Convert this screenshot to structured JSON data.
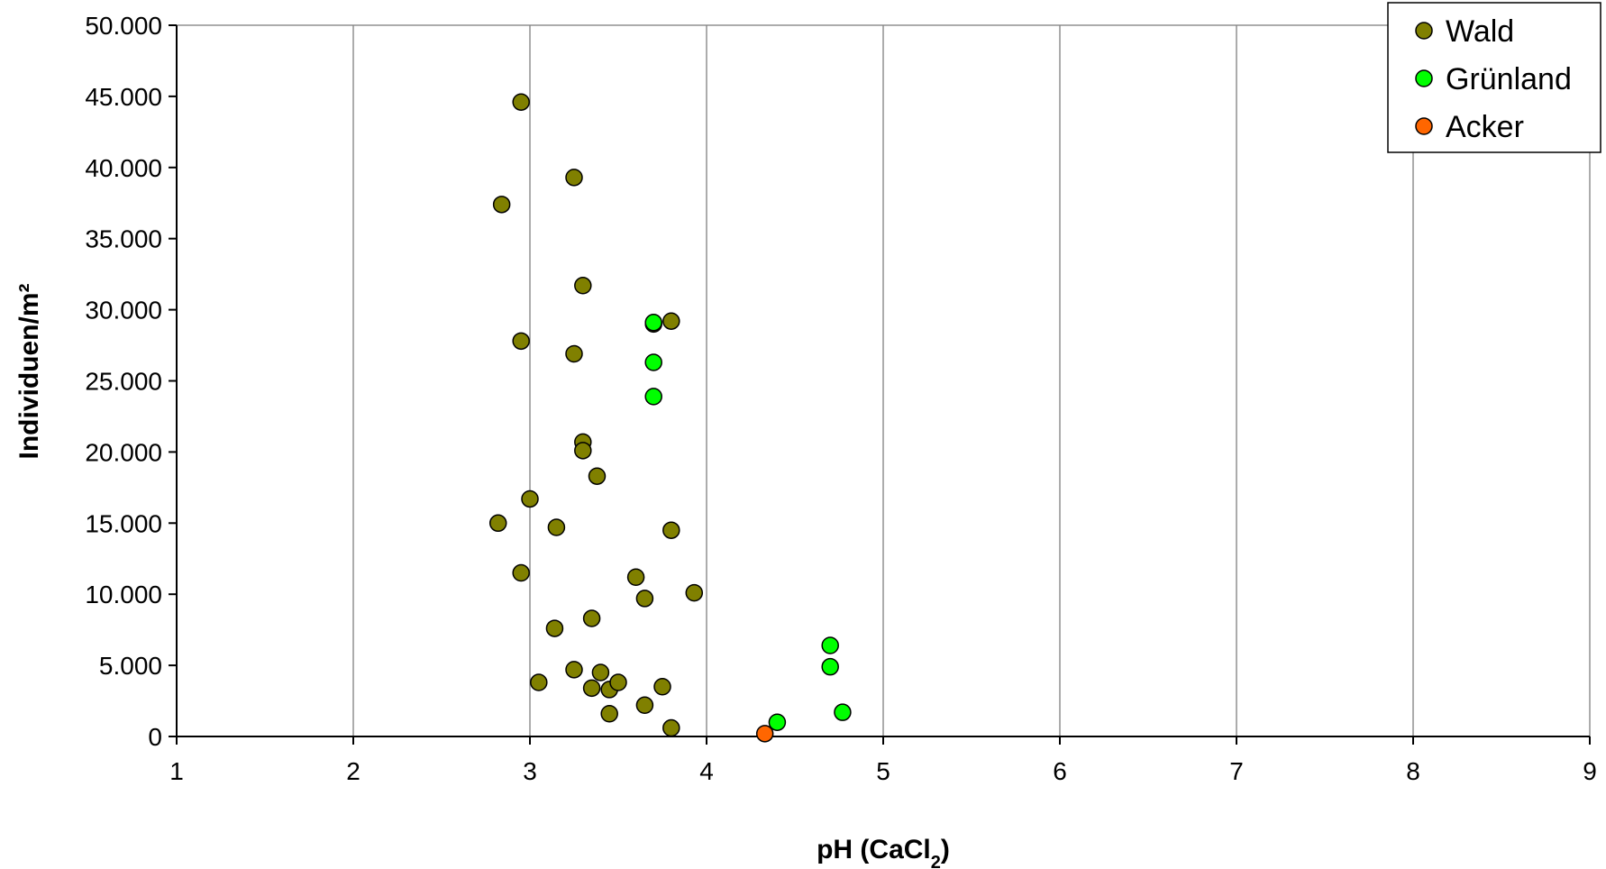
{
  "chart_data": {
    "type": "scatter",
    "xlabel": "pH (CaCl",
    "xlabel_subscript": "2",
    "xlabel_suffix": ")",
    "ylabel": "Individuen/m²",
    "xlim": [
      1,
      9
    ],
    "ylim": [
      0,
      50000
    ],
    "x_ticks": [
      1,
      2,
      3,
      4,
      5,
      6,
      7,
      8,
      9
    ],
    "y_ticks": [
      0,
      5000,
      10000,
      15000,
      20000,
      25000,
      30000,
      35000,
      40000,
      45000,
      50000
    ],
    "x_tick_labels": [
      "1",
      "2",
      "3",
      "4",
      "5",
      "6",
      "7",
      "8",
      "9"
    ],
    "y_tick_labels": [
      "0",
      "5.000",
      "10.000",
      "15.000",
      "20.000",
      "25.000",
      "30.000",
      "35.000",
      "40.000",
      "45.000",
      "50.000"
    ],
    "grid": "vertical",
    "legend_position": "top-right",
    "series": [
      {
        "name": "Wald",
        "color": "#808000",
        "points": [
          [
            2.95,
            44600
          ],
          [
            3.25,
            39300
          ],
          [
            2.84,
            37400
          ],
          [
            3.3,
            31700
          ],
          [
            3.8,
            29200
          ],
          [
            3.7,
            29000
          ],
          [
            2.95,
            27800
          ],
          [
            3.25,
            26900
          ],
          [
            3.3,
            20700
          ],
          [
            3.3,
            20100
          ],
          [
            3.38,
            18300
          ],
          [
            3.0,
            16700
          ],
          [
            2.82,
            15000
          ],
          [
            3.15,
            14700
          ],
          [
            3.8,
            14500
          ],
          [
            2.95,
            11500
          ],
          [
            3.6,
            11200
          ],
          [
            3.65,
            9700
          ],
          [
            3.93,
            10100
          ],
          [
            3.35,
            8300
          ],
          [
            3.14,
            7600
          ],
          [
            3.25,
            4700
          ],
          [
            3.4,
            4500
          ],
          [
            3.05,
            3800
          ],
          [
            3.35,
            3400
          ],
          [
            3.45,
            3300
          ],
          [
            3.5,
            3800
          ],
          [
            3.75,
            3500
          ],
          [
            3.65,
            2200
          ],
          [
            3.45,
            1600
          ],
          [
            3.8,
            600
          ]
        ]
      },
      {
        "name": "Grünland",
        "color": "#00FF00",
        "points": [
          [
            3.7,
            29100
          ],
          [
            3.7,
            26300
          ],
          [
            3.7,
            23900
          ],
          [
            4.7,
            6400
          ],
          [
            4.7,
            4900
          ],
          [
            4.77,
            1700
          ],
          [
            4.4,
            1000
          ]
        ]
      },
      {
        "name": "Acker",
        "color": "#FF6600",
        "points": [
          [
            4.33,
            200
          ]
        ]
      }
    ]
  }
}
